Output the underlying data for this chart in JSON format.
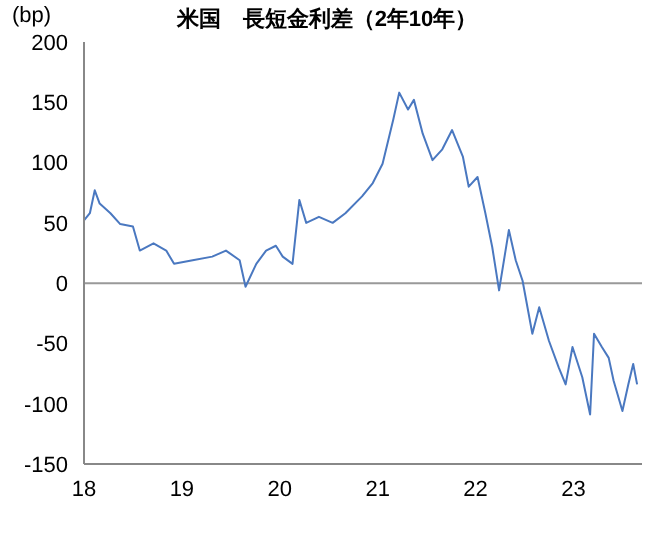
{
  "chart_data": {
    "type": "line",
    "title": "米国　長短金利差（2年10年）",
    "ylabel": "(bp)",
    "xlim": [
      18,
      23.7
    ],
    "xticks": [
      {
        "value": 18,
        "label": "18"
      },
      {
        "value": 19,
        "label": "19"
      },
      {
        "value": 20,
        "label": "20"
      },
      {
        "value": 21,
        "label": "21"
      },
      {
        "value": 22,
        "label": "22"
      },
      {
        "value": 23,
        "label": "23"
      }
    ],
    "ylim": [
      -150,
      200
    ],
    "yticks": [
      -150,
      -100,
      -50,
      0,
      50,
      100,
      150,
      200
    ],
    "ref_lines": [
      {
        "axis": "y",
        "value": 0,
        "color": "#999999"
      }
    ],
    "marker": "none",
    "line_style": "solid",
    "grid": false,
    "legend": false,
    "series": [
      {
        "color": "#4a78c0",
        "x": [
          18.0,
          18.06,
          18.11,
          18.16,
          18.27,
          18.37,
          18.5,
          18.57,
          18.71,
          18.84,
          18.92,
          19.11,
          19.31,
          19.45,
          19.59,
          19.65,
          19.76,
          19.86,
          19.96,
          20.03,
          20.13,
          20.2,
          20.27,
          20.4,
          20.54,
          20.67,
          20.84,
          20.95,
          21.05,
          21.16,
          21.22,
          21.31,
          21.37,
          21.46,
          21.56,
          21.66,
          21.76,
          21.87,
          21.93,
          22.02,
          22.1,
          22.17,
          22.24,
          22.34,
          22.41,
          22.48,
          22.58,
          22.65,
          22.75,
          22.85,
          22.92,
          22.99,
          23.09,
          23.17,
          23.21,
          23.29,
          23.36,
          23.41,
          23.5,
          23.56,
          23.61,
          23.65
        ],
        "values": [
          52,
          58,
          77,
          66,
          58,
          49,
          47,
          27,
          33,
          27,
          16,
          19,
          22,
          27,
          19,
          -3,
          16,
          27,
          31,
          22,
          16,
          69,
          50,
          55,
          50,
          58,
          72,
          83,
          99,
          136,
          158,
          144,
          152,
          124,
          102,
          111,
          127,
          105,
          80,
          88,
          58,
          30,
          -6,
          44,
          19,
          2,
          -42,
          -20,
          -48,
          -70,
          -84,
          -53,
          -78,
          -109,
          -42,
          -53,
          -62,
          -81,
          -106,
          -84,
          -67,
          -84
        ]
      }
    ]
  }
}
